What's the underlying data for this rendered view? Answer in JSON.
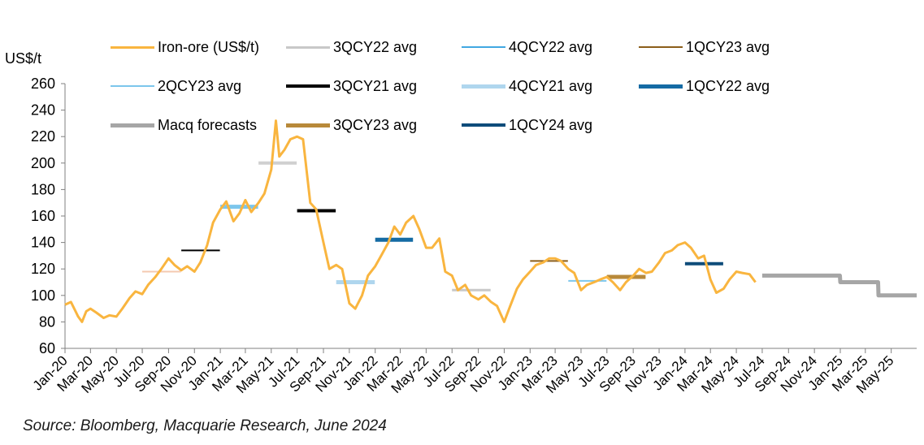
{
  "chart_data": {
    "type": "line",
    "ylabel": "US$/t",
    "ylim": [
      60,
      260
    ],
    "yticks": [
      60,
      80,
      100,
      120,
      140,
      160,
      180,
      200,
      220,
      240,
      260
    ],
    "grid": false,
    "x_tick_labels": [
      "Jan-20",
      "Mar-20",
      "May-20",
      "Jul-20",
      "Sep-20",
      "Nov-20",
      "Jan-21",
      "Mar-21",
      "May-21",
      "Jul-21",
      "Sep-21",
      "Nov-21",
      "Jan-22",
      "Mar-22",
      "May-22",
      "Jul-22",
      "Sep-22",
      "Nov-22",
      "Jan-23",
      "Mar-23",
      "May-23",
      "Jul-23",
      "Sep-23",
      "Nov-23",
      "Jan-24",
      "Mar-24",
      "May-24",
      "Jul-24",
      "Sep-24",
      "Nov-24",
      "Jan-25",
      "Mar-25",
      "May-25"
    ],
    "legend": [
      {
        "label": "Iron-ore (US$/t)",
        "color": "#F9B53F",
        "width": 3
      },
      {
        "label": "3QCY22 avg",
        "color": "#C8C8C8",
        "width": 3
      },
      {
        "label": "4QCY22 avg",
        "color": "#41A8E2",
        "width": 2
      },
      {
        "label": "1QCY23 avg",
        "color": "#8B5E1A",
        "width": 2
      },
      {
        "label": "2QCY23 avg",
        "color": "#7CC6EC",
        "width": 2
      },
      {
        "label": "3QCY21 avg",
        "color": "#000000",
        "width": 4
      },
      {
        "label": "4QCY21 avg",
        "color": "#AFD6EE",
        "width": 5
      },
      {
        "label": "1QCY22 avg",
        "color": "#156BA4",
        "width": 5
      },
      {
        "label": "Macq forecasts",
        "color": "#A6A6A6",
        "width": 5
      },
      {
        "label": "3QCY23 avg",
        "color": "#B8893A",
        "width": 5
      },
      {
        "label": "1QCY24 avg",
        "color": "#0E4C7A",
        "width": 4
      }
    ],
    "series": [
      {
        "name": "Iron-ore (US$/t)",
        "color": "#F9B53F",
        "points": [
          [
            "2020-01-01",
            93
          ],
          [
            "2020-01-15",
            95
          ],
          [
            "2020-02-01",
            84
          ],
          [
            "2020-02-10",
            80
          ],
          [
            "2020-02-20",
            88
          ],
          [
            "2020-03-01",
            90
          ],
          [
            "2020-03-15",
            87
          ],
          [
            "2020-04-01",
            83
          ],
          [
            "2020-04-15",
            85
          ],
          [
            "2020-05-01",
            84
          ],
          [
            "2020-05-15",
            90
          ],
          [
            "2020-06-01",
            98
          ],
          [
            "2020-06-15",
            103
          ],
          [
            "2020-07-01",
            101
          ],
          [
            "2020-07-15",
            108
          ],
          [
            "2020-08-01",
            114
          ],
          [
            "2020-08-15",
            120
          ],
          [
            "2020-09-01",
            128
          ],
          [
            "2020-09-15",
            123
          ],
          [
            "2020-10-01",
            119
          ],
          [
            "2020-10-15",
            122
          ],
          [
            "2020-11-01",
            118
          ],
          [
            "2020-11-15",
            125
          ],
          [
            "2020-12-01",
            138
          ],
          [
            "2020-12-15",
            155
          ],
          [
            "2021-01-01",
            165
          ],
          [
            "2021-01-15",
            171
          ],
          [
            "2021-02-01",
            156
          ],
          [
            "2021-02-15",
            162
          ],
          [
            "2021-03-01",
            172
          ],
          [
            "2021-03-15",
            163
          ],
          [
            "2021-04-01",
            170
          ],
          [
            "2021-04-15",
            177
          ],
          [
            "2021-05-01",
            195
          ],
          [
            "2021-05-12",
            232
          ],
          [
            "2021-05-20",
            205
          ],
          [
            "2021-06-01",
            210
          ],
          [
            "2021-06-15",
            218
          ],
          [
            "2021-07-01",
            220
          ],
          [
            "2021-07-15",
            218
          ],
          [
            "2021-08-01",
            170
          ],
          [
            "2021-08-15",
            165
          ],
          [
            "2021-09-01",
            140
          ],
          [
            "2021-09-15",
            120
          ],
          [
            "2021-10-01",
            123
          ],
          [
            "2021-10-15",
            120
          ],
          [
            "2021-11-01",
            94
          ],
          [
            "2021-11-15",
            90
          ],
          [
            "2021-12-01",
            100
          ],
          [
            "2021-12-15",
            115
          ],
          [
            "2022-01-01",
            122
          ],
          [
            "2022-01-15",
            130
          ],
          [
            "2022-02-01",
            140
          ],
          [
            "2022-02-15",
            152
          ],
          [
            "2022-03-01",
            146
          ],
          [
            "2022-03-15",
            155
          ],
          [
            "2022-04-01",
            160
          ],
          [
            "2022-04-15",
            150
          ],
          [
            "2022-05-01",
            136
          ],
          [
            "2022-05-15",
            136
          ],
          [
            "2022-06-01",
            143
          ],
          [
            "2022-06-15",
            118
          ],
          [
            "2022-07-01",
            115
          ],
          [
            "2022-07-15",
            104
          ],
          [
            "2022-08-01",
            108
          ],
          [
            "2022-08-15",
            100
          ],
          [
            "2022-09-01",
            97
          ],
          [
            "2022-09-15",
            100
          ],
          [
            "2022-10-01",
            95
          ],
          [
            "2022-10-15",
            92
          ],
          [
            "2022-11-01",
            80
          ],
          [
            "2022-11-15",
            92
          ],
          [
            "2022-12-01",
            105
          ],
          [
            "2022-12-15",
            112
          ],
          [
            "2023-01-01",
            118
          ],
          [
            "2023-01-15",
            123
          ],
          [
            "2023-02-01",
            125
          ],
          [
            "2023-02-15",
            128
          ],
          [
            "2023-03-01",
            128
          ],
          [
            "2023-03-15",
            126
          ],
          [
            "2023-04-01",
            120
          ],
          [
            "2023-04-15",
            117
          ],
          [
            "2023-05-01",
            104
          ],
          [
            "2023-05-15",
            108
          ],
          [
            "2023-06-01",
            110
          ],
          [
            "2023-06-15",
            112
          ],
          [
            "2023-07-01",
            114
          ],
          [
            "2023-07-15",
            110
          ],
          [
            "2023-08-01",
            104
          ],
          [
            "2023-08-15",
            110
          ],
          [
            "2023-09-01",
            115
          ],
          [
            "2023-09-15",
            120
          ],
          [
            "2023-10-01",
            117
          ],
          [
            "2023-10-15",
            118
          ],
          [
            "2023-11-01",
            125
          ],
          [
            "2023-11-15",
            132
          ],
          [
            "2023-12-01",
            134
          ],
          [
            "2023-12-15",
            138
          ],
          [
            "2024-01-01",
            140
          ],
          [
            "2024-01-15",
            136
          ],
          [
            "2024-02-01",
            128
          ],
          [
            "2024-02-15",
            130
          ],
          [
            "2024-03-01",
            112
          ],
          [
            "2024-03-15",
            102
          ],
          [
            "2024-04-01",
            105
          ],
          [
            "2024-04-15",
            112
          ],
          [
            "2024-05-01",
            118
          ],
          [
            "2024-05-15",
            117
          ],
          [
            "2024-06-01",
            116
          ],
          [
            "2024-06-15",
            110
          ]
        ]
      },
      {
        "name": "3QCY21 avg",
        "color": "#000000",
        "width": 4,
        "points": [
          [
            "2021-07-01",
            164
          ],
          [
            "2021-09-30",
            164
          ]
        ]
      },
      {
        "name": "4QCY21 avg",
        "color": "#AFD6EE",
        "width": 5,
        "points": [
          [
            "2021-10-01",
            110
          ],
          [
            "2021-12-31",
            110
          ]
        ]
      },
      {
        "name": "1QCY22 avg",
        "color": "#156BA4",
        "width": 5,
        "points": [
          [
            "2022-01-01",
            142
          ],
          [
            "2022-03-31",
            142
          ]
        ]
      },
      {
        "name": "3QCY22 avg",
        "color": "#C8C8C8",
        "width": 3,
        "points": [
          [
            "2022-07-01",
            104
          ],
          [
            "2022-09-30",
            104
          ]
        ]
      },
      {
        "name": "1QCY23 avg",
        "color": "#8B5E1A",
        "width": 2,
        "points": [
          [
            "2023-01-01",
            126
          ],
          [
            "2023-03-31",
            126
          ]
        ]
      },
      {
        "name": "2QCY23 avg",
        "color": "#7CC6EC",
        "width": 2,
        "points": [
          [
            "2023-04-01",
            111
          ],
          [
            "2023-06-30",
            111
          ]
        ]
      },
      {
        "name": "3QCY23 avg",
        "color": "#B8893A",
        "width": 5,
        "points": [
          [
            "2023-07-01",
            114
          ],
          [
            "2023-09-30",
            114
          ]
        ]
      },
      {
        "name": "1QCY24 avg",
        "color": "#0E4C7A",
        "width": 4,
        "points": [
          [
            "2024-01-01",
            124
          ],
          [
            "2024-03-31",
            124
          ]
        ]
      },
      {
        "name": "Macq forecasts",
        "color": "#A6A6A6",
        "width": 5,
        "points": [
          [
            "2024-07-01",
            115
          ],
          [
            "2024-12-31",
            115
          ],
          [
            "2025-01-01",
            110
          ],
          [
            "2025-03-31",
            110
          ],
          [
            "2025-04-01",
            100
          ],
          [
            "2025-06-30",
            100
          ]
        ]
      }
    ],
    "extra_avg_bars": [
      {
        "color": "#F4C9B0",
        "width": 2,
        "points": [
          [
            "2020-07-01",
            118
          ],
          [
            "2020-09-30",
            118
          ]
        ]
      },
      {
        "color": "#000000",
        "width": 2,
        "points": [
          [
            "2020-10-01",
            134
          ],
          [
            "2020-12-31",
            134
          ]
        ]
      },
      {
        "color": "#7CC6EC",
        "width": 5,
        "points": [
          [
            "2021-01-01",
            167
          ],
          [
            "2021-03-31",
            167
          ]
        ]
      },
      {
        "color": "#D0D0D0",
        "width": 4,
        "points": [
          [
            "2021-04-01",
            200
          ],
          [
            "2021-06-30",
            200
          ]
        ]
      },
      {
        "color": "#B8893A",
        "width": 4,
        "points": [
          [
            "2023-07-01",
            114
          ],
          [
            "2023-09-30",
            114
          ]
        ]
      }
    ],
    "x_start": "2020-01-01",
    "x_end": "2025-06-30"
  },
  "source": "Source: Bloomberg, Macquarie Research, June 2024"
}
